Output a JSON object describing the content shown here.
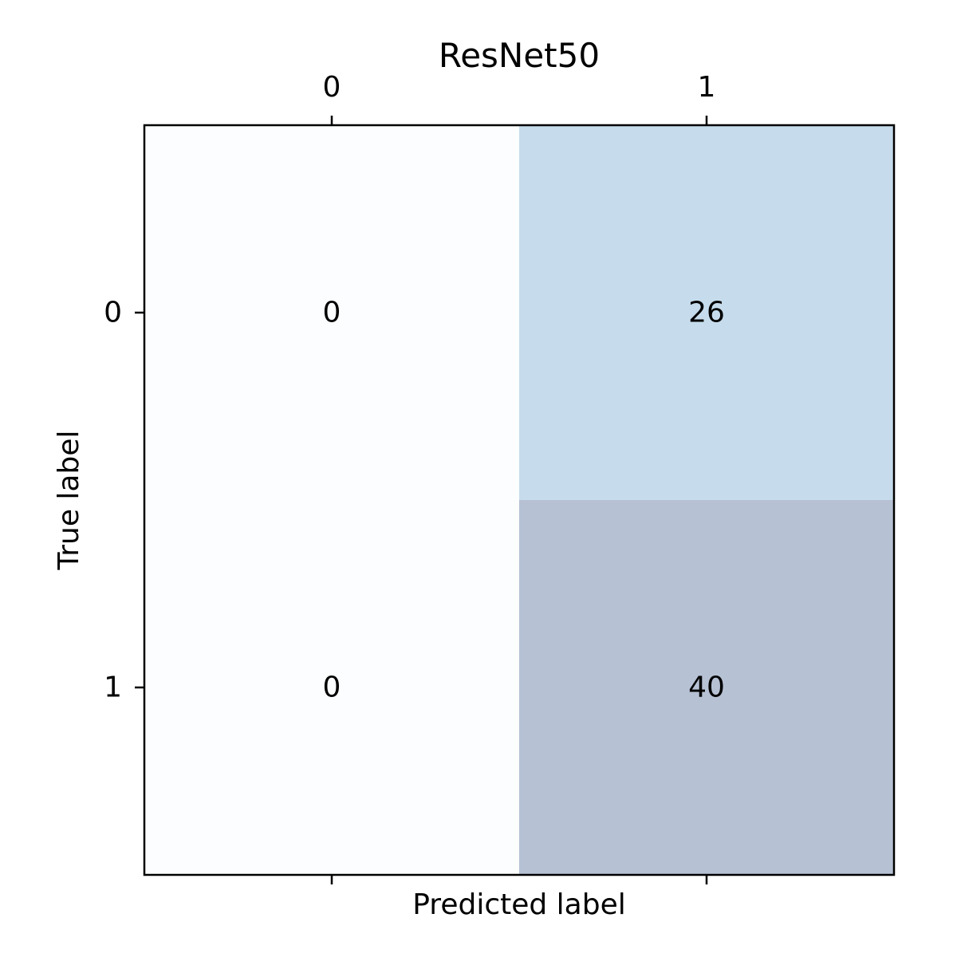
{
  "chart_data": {
    "type": "heatmap",
    "title": "ResNet50",
    "xlabel": "Predicted label",
    "ylabel": "True label",
    "x_categories": [
      "0",
      "1"
    ],
    "y_categories": [
      "0",
      "1"
    ],
    "matrix": [
      [
        0,
        26
      ],
      [
        0,
        40
      ]
    ],
    "colormap": "Blues",
    "cell_colors": [
      [
        "#fbfdff",
        "#c6dcec"
      ],
      [
        "#fbfdff",
        "#b6c1d4"
      ]
    ],
    "x_ticks_position": "top-and-bottom",
    "x_tick_labels_position": "top",
    "grid": false
  }
}
